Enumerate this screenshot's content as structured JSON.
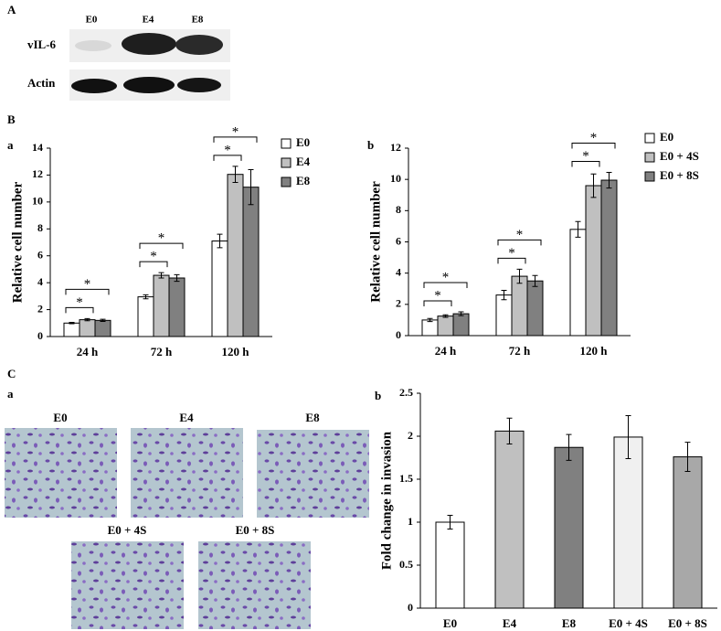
{
  "panels": [
    "A",
    "B",
    "C"
  ],
  "subpanels": [
    "a",
    "b",
    "a",
    "b"
  ],
  "blot": {
    "lanes": [
      "E0",
      "E4",
      "E8"
    ],
    "rows": [
      "vIL-6",
      "Actin"
    ]
  },
  "micrographs": [
    "E0",
    "E4",
    "E8",
    "E0 + 4S",
    "E0 + 8S"
  ],
  "chart_data": [
    {
      "type": "bar",
      "y_label": "Relative cell number",
      "categories": [
        "24 h",
        "72 h",
        "120 h"
      ],
      "series": [
        {
          "name": "E0",
          "color": "#ffffff",
          "values": [
            1.0,
            2.95,
            7.1
          ],
          "errors": [
            0.05,
            0.15,
            0.5
          ]
        },
        {
          "name": "E4",
          "color": "#c0c0c0",
          "values": [
            1.25,
            4.55,
            12.05
          ],
          "errors": [
            0.08,
            0.2,
            0.6
          ]
        },
        {
          "name": "E8",
          "color": "#808080",
          "values": [
            1.2,
            4.35,
            11.1
          ],
          "errors": [
            0.08,
            0.25,
            1.3
          ]
        }
      ],
      "ylim": [
        0,
        14
      ],
      "yticks": [
        0,
        2,
        4,
        6,
        8,
        10,
        12,
        14
      ],
      "grid": false,
      "annotations": [
        "*",
        "*",
        "*",
        "*",
        "*",
        "*"
      ]
    },
    {
      "type": "bar",
      "y_label": "Relative cell number",
      "categories": [
        "24 h",
        "72 h",
        "120 h"
      ],
      "series": [
        {
          "name": "E0",
          "color": "#ffffff",
          "values": [
            1.0,
            2.6,
            6.8
          ],
          "errors": [
            0.1,
            0.3,
            0.5
          ]
        },
        {
          "name": "E0 + 4S",
          "color": "#c0c0c0",
          "values": [
            1.25,
            3.8,
            9.6
          ],
          "errors": [
            0.08,
            0.45,
            0.75
          ]
        },
        {
          "name": "E0 + 8S",
          "color": "#808080",
          "values": [
            1.4,
            3.5,
            9.95
          ],
          "errors": [
            0.12,
            0.35,
            0.5
          ]
        }
      ],
      "ylim": [
        0,
        12
      ],
      "yticks": [
        0,
        2,
        4,
        6,
        8,
        10,
        12
      ],
      "grid": false,
      "annotations": [
        "*",
        "*",
        "*",
        "*",
        "*",
        "*"
      ]
    },
    {
      "type": "bar",
      "y_label": "Fold change in invasion",
      "categories": [
        "E0",
        "E4",
        "E8",
        "E0 + 4S",
        "E0 + 8S"
      ],
      "values": [
        1.0,
        2.06,
        1.87,
        1.99,
        1.76
      ],
      "errors": [
        0.08,
        0.15,
        0.15,
        0.25,
        0.17
      ],
      "colors": [
        "#ffffff",
        "#c0c0c0",
        "#808080",
        "#f0f0f0",
        "#a8a8a8"
      ],
      "ylim": [
        0,
        2.5
      ],
      "yticks": [
        0,
        0.5,
        1,
        1.5,
        2,
        2.5
      ],
      "grid": false
    }
  ]
}
